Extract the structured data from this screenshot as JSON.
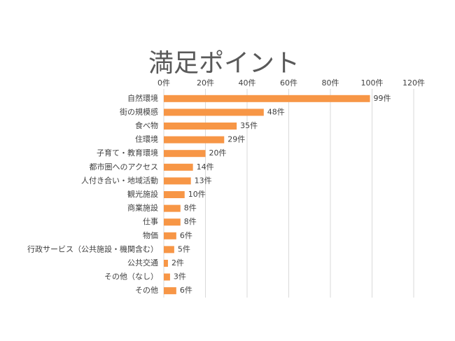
{
  "chart_data": {
    "type": "bar",
    "title": "満足ポイント",
    "categories": [
      "自然環境",
      "街の規模感",
      "食べ物",
      "住環境",
      "子育て・教育環境",
      "都市圏へのアクセス",
      "人付き合い・地域活動",
      "観光施設",
      "商業施設",
      "仕事",
      "物価",
      "行政サービス（公共施設・機関含む）",
      "公共交通",
      "その他（なし）",
      "その他"
    ],
    "values": [
      99,
      48,
      35,
      29,
      20,
      14,
      13,
      10,
      8,
      8,
      6,
      5,
      2,
      3,
      6
    ],
    "value_labels": [
      "99件",
      "48件",
      "35件",
      "29件",
      "20件",
      "14件",
      "13件",
      "10件",
      "8件",
      "8件",
      "6件",
      "5件",
      "2件",
      "3件",
      "6件"
    ],
    "color": "#f79646",
    "xlim": [
      0,
      120
    ],
    "xticks": [
      {
        "value": 0,
        "label": "0件"
      },
      {
        "value": 20,
        "label": "20件"
      },
      {
        "value": 40,
        "label": "40件"
      },
      {
        "value": 60,
        "label": "60件"
      },
      {
        "value": 80,
        "label": "80件"
      },
      {
        "value": 100,
        "label": "100件"
      },
      {
        "value": 120,
        "label": "120件"
      }
    ],
    "grid": true
  }
}
